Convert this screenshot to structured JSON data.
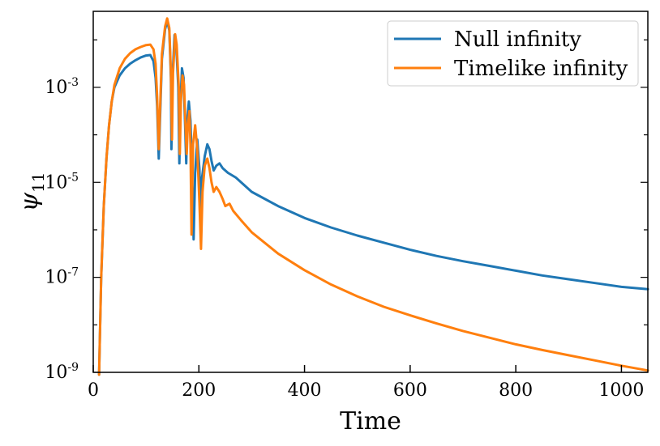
{
  "chart_data": {
    "type": "line",
    "title": "",
    "xlabel": "Time",
    "ylabel": "ψ",
    "ylabel_sub": "11",
    "xlim": [
      0,
      1050
    ],
    "ylim_log10": [
      -9,
      -1.4
    ],
    "y_scale": "log",
    "grid": false,
    "legend_position": "top-right",
    "x_ticks": [
      {
        "value": 0,
        "label": "0"
      },
      {
        "value": 200,
        "label": "200"
      },
      {
        "value": 400,
        "label": "400"
      },
      {
        "value": 600,
        "label": "600"
      },
      {
        "value": 800,
        "label": "800"
      },
      {
        "value": 1000,
        "label": "1000"
      }
    ],
    "y_ticks": [
      {
        "value": -9,
        "base": "10",
        "exp": "-9"
      },
      {
        "value": -7,
        "base": "10",
        "exp": "-7"
      },
      {
        "value": -5,
        "base": "10",
        "exp": "-5"
      },
      {
        "value": -3,
        "base": "10",
        "exp": "-3"
      }
    ],
    "series": [
      {
        "name": "Null infinity",
        "color": "#1f77b4",
        "points": [
          [
            11,
            -9.2
          ],
          [
            15,
            -7.0
          ],
          [
            20,
            -5.5
          ],
          [
            25,
            -4.5
          ],
          [
            30,
            -3.8
          ],
          [
            35,
            -3.3
          ],
          [
            40,
            -3.0
          ],
          [
            50,
            -2.75
          ],
          [
            60,
            -2.6
          ],
          [
            70,
            -2.5
          ],
          [
            80,
            -2.43
          ],
          [
            90,
            -2.37
          ],
          [
            100,
            -2.33
          ],
          [
            108,
            -2.32
          ],
          [
            114,
            -2.45
          ],
          [
            118,
            -2.8
          ],
          [
            121,
            -3.4
          ],
          [
            124,
            -4.5
          ],
          [
            126,
            -3.8
          ],
          [
            130,
            -2.4
          ],
          [
            136,
            -1.78
          ],
          [
            140,
            -1.6
          ],
          [
            144,
            -1.8
          ],
          [
            147,
            -2.8
          ],
          [
            148,
            -4.3
          ],
          [
            150,
            -2.8
          ],
          [
            154,
            -1.9
          ],
          [
            157,
            -2.1
          ],
          [
            161,
            -3.0
          ],
          [
            163,
            -4.6
          ],
          [
            165,
            -3.4
          ],
          [
            168,
            -2.6
          ],
          [
            171,
            -2.8
          ],
          [
            174,
            -3.8
          ],
          [
            176,
            -4.6
          ],
          [
            178,
            -3.7
          ],
          [
            181,
            -3.3
          ],
          [
            184,
            -3.7
          ],
          [
            187,
            -4.8
          ],
          [
            190,
            -6.2
          ],
          [
            193,
            -4.8
          ],
          [
            197,
            -4.1
          ],
          [
            201,
            -4.7
          ],
          [
            204,
            -5.8
          ],
          [
            206,
            -4.9
          ],
          [
            211,
            -4.45
          ],
          [
            216,
            -4.2
          ],
          [
            220,
            -4.3
          ],
          [
            224,
            -4.55
          ],
          [
            228,
            -4.75
          ],
          [
            233,
            -4.65
          ],
          [
            239,
            -4.6
          ],
          [
            245,
            -4.7
          ],
          [
            255,
            -4.8
          ],
          [
            270,
            -4.9
          ],
          [
            300,
            -5.2
          ],
          [
            350,
            -5.5
          ],
          [
            400,
            -5.75
          ],
          [
            450,
            -5.95
          ],
          [
            500,
            -6.12
          ],
          [
            550,
            -6.27
          ],
          [
            600,
            -6.42
          ],
          [
            650,
            -6.55
          ],
          [
            700,
            -6.66
          ],
          [
            750,
            -6.76
          ],
          [
            800,
            -6.86
          ],
          [
            850,
            -6.96
          ],
          [
            900,
            -7.04
          ],
          [
            950,
            -7.12
          ],
          [
            1000,
            -7.2
          ],
          [
            1050,
            -7.25
          ]
        ]
      },
      {
        "name": "Timelike infinity",
        "color": "#ff7f0e",
        "points": [
          [
            11,
            -9.2
          ],
          [
            15,
            -7.0
          ],
          [
            20,
            -5.5
          ],
          [
            25,
            -4.5
          ],
          [
            30,
            -3.8
          ],
          [
            35,
            -3.3
          ],
          [
            40,
            -2.95
          ],
          [
            50,
            -2.6
          ],
          [
            60,
            -2.4
          ],
          [
            70,
            -2.28
          ],
          [
            80,
            -2.2
          ],
          [
            90,
            -2.15
          ],
          [
            100,
            -2.11
          ],
          [
            108,
            -2.1
          ],
          [
            114,
            -2.2
          ],
          [
            118,
            -2.5
          ],
          [
            121,
            -3.2
          ],
          [
            124,
            -4.3
          ],
          [
            126,
            -3.6
          ],
          [
            130,
            -2.3
          ],
          [
            136,
            -1.72
          ],
          [
            140,
            -1.55
          ],
          [
            144,
            -1.75
          ],
          [
            147,
            -2.7
          ],
          [
            149,
            -4.1
          ],
          [
            151,
            -2.7
          ],
          [
            155,
            -1.88
          ],
          [
            158,
            -2.1
          ],
          [
            162,
            -3.0
          ],
          [
            164,
            -4.4
          ],
          [
            166,
            -3.3
          ],
          [
            169,
            -2.75
          ],
          [
            172,
            -2.95
          ],
          [
            175,
            -3.9
          ],
          [
            177,
            -4.4
          ],
          [
            179,
            -3.8
          ],
          [
            182,
            -3.5
          ],
          [
            184,
            -4.2
          ],
          [
            186,
            -6.1
          ],
          [
            189,
            -4.2
          ],
          [
            193,
            -3.8
          ],
          [
            197,
            -4.3
          ],
          [
            201,
            -5.4
          ],
          [
            204,
            -6.4
          ],
          [
            207,
            -5.2
          ],
          [
            211,
            -4.65
          ],
          [
            216,
            -4.5
          ],
          [
            220,
            -4.7
          ],
          [
            224,
            -5.0
          ],
          [
            228,
            -5.2
          ],
          [
            233,
            -5.1
          ],
          [
            239,
            -5.2
          ],
          [
            245,
            -5.35
          ],
          [
            250,
            -5.5
          ],
          [
            258,
            -5.45
          ],
          [
            265,
            -5.6
          ],
          [
            280,
            -5.8
          ],
          [
            300,
            -6.05
          ],
          [
            350,
            -6.5
          ],
          [
            400,
            -6.85
          ],
          [
            450,
            -7.15
          ],
          [
            500,
            -7.4
          ],
          [
            550,
            -7.62
          ],
          [
            600,
            -7.8
          ],
          [
            650,
            -7.97
          ],
          [
            700,
            -8.13
          ],
          [
            750,
            -8.27
          ],
          [
            800,
            -8.41
          ],
          [
            850,
            -8.53
          ],
          [
            900,
            -8.64
          ],
          [
            950,
            -8.75
          ],
          [
            1000,
            -8.86
          ],
          [
            1050,
            -8.96
          ]
        ]
      }
    ]
  }
}
